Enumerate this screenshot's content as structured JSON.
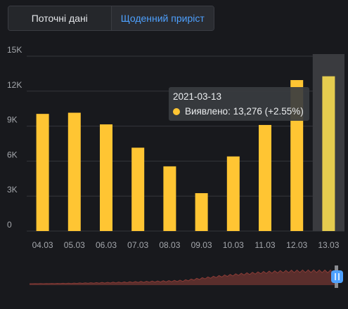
{
  "tabs": {
    "current_label": "Поточні дані",
    "daily_label": "Щоденний приріст"
  },
  "colors": {
    "bar": "#ffc533",
    "bar_highlight": "#e5cc4f",
    "hover_band": "#3a3b3f",
    "navigator_fill": "#5a2e2c",
    "navigator_line": "#8a3b36",
    "handle": "#4ea1ff"
  },
  "tooltip": {
    "date": "2021-03-13",
    "series_label": "Виявлено:",
    "value_text": "13,276 (+2.55%)"
  },
  "chart_data": {
    "type": "bar",
    "categories": [
      "04.03",
      "05.03",
      "06.03",
      "07.03",
      "08.03",
      "09.03",
      "10.03",
      "11.03",
      "12.03",
      "13.03"
    ],
    "series": [
      {
        "name": "Виявлено",
        "values": [
          10050,
          10150,
          9150,
          7150,
          5550,
          3250,
          6400,
          9100,
          12950,
          13276
        ]
      }
    ],
    "ylim": [
      0,
      15000
    ],
    "yticks": [
      0,
      3000,
      6000,
      9000,
      12000,
      15000
    ],
    "ytick_labels": [
      "0",
      "3K",
      "6K",
      "9K",
      "12K",
      "15K"
    ],
    "highlighted_category": "13.03",
    "grid": true
  }
}
